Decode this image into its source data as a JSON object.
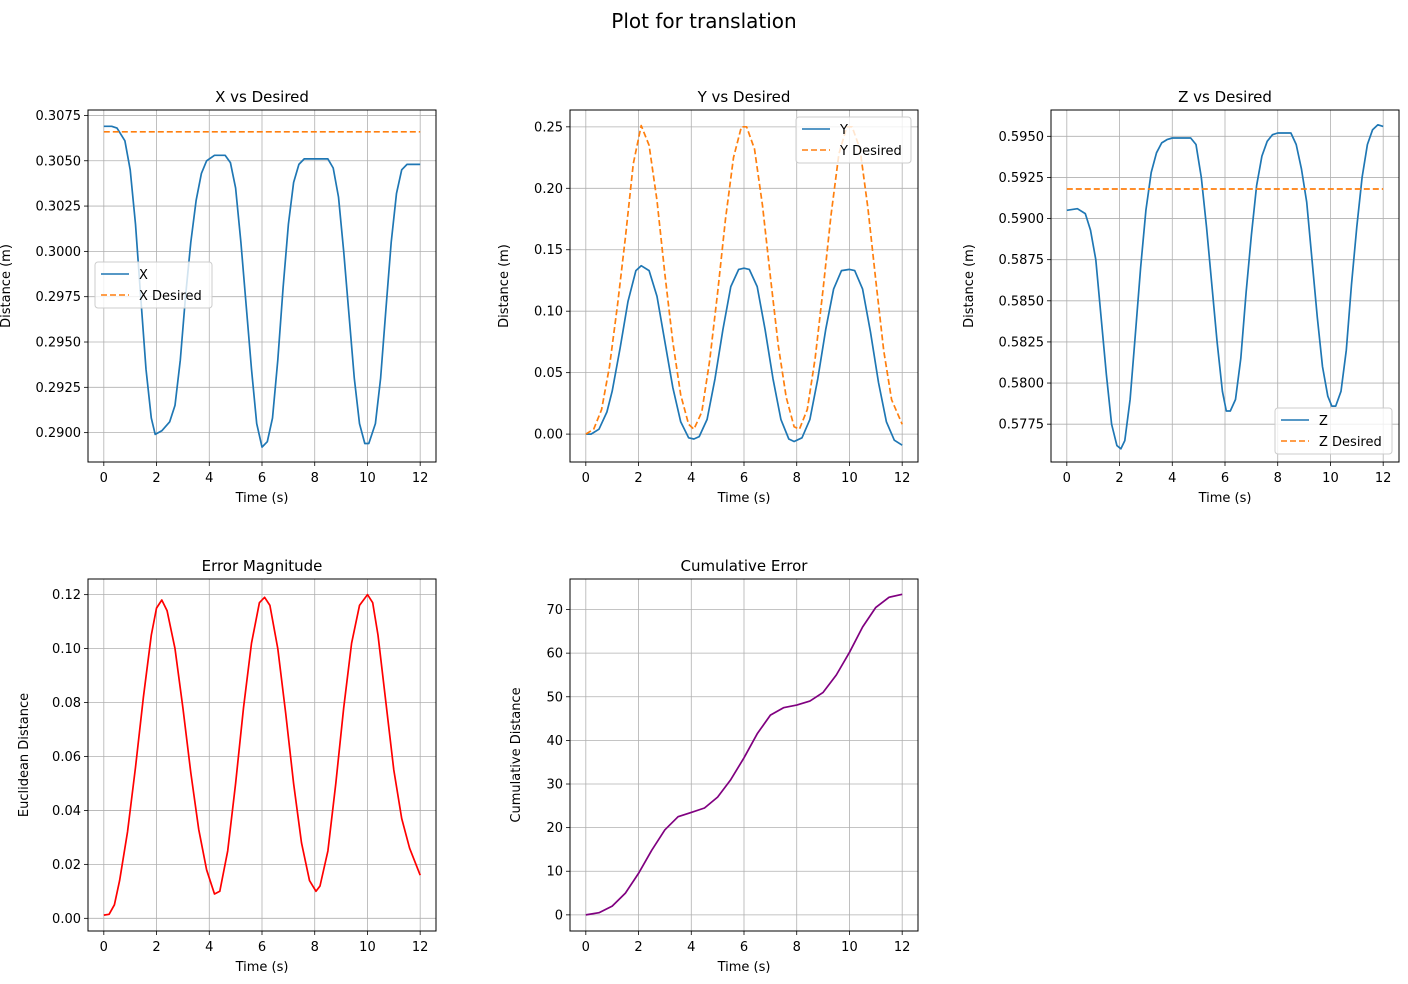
{
  "figure": {
    "title": "Plot for translation",
    "colors": {
      "measured": "#1f77b4",
      "desired": "#ff7f0e",
      "error": "#ff0000",
      "cumulative": "#800080"
    }
  },
  "chart_data": [
    {
      "type": "line",
      "title": "X vs Desired",
      "xlabel": "Time (s)",
      "ylabel": "Distance (m)",
      "xlim": [
        -0.6,
        12.6
      ],
      "ylim": [
        0.28838,
        0.3078
      ],
      "xticks": [
        0,
        2,
        4,
        6,
        8,
        10,
        12
      ],
      "yticks": [
        0.29,
        0.2925,
        0.295,
        0.2975,
        0.3,
        0.3025,
        0.305,
        0.3075
      ],
      "ytick_labels": [
        "0.2900",
        "0.2925",
        "0.2950",
        "0.2975",
        "0.3000",
        "0.3025",
        "0.3050",
        "0.3075"
      ],
      "grid": true,
      "legend": {
        "placement": "center-left"
      },
      "series": [
        {
          "name": "X",
          "style": "solid",
          "color": "#1f77b4",
          "x": [
            0,
            0.3,
            0.5,
            0.8,
            1.0,
            1.2,
            1.4,
            1.6,
            1.8,
            1.95,
            2.2,
            2.5,
            2.7,
            2.9,
            3.1,
            3.3,
            3.5,
            3.7,
            3.9,
            4.2,
            4.6,
            4.8,
            5.0,
            5.2,
            5.4,
            5.6,
            5.8,
            6.0,
            6.2,
            6.4,
            6.6,
            6.8,
            7.0,
            7.2,
            7.4,
            7.6,
            7.8,
            8.0,
            8.5,
            8.7,
            8.9,
            9.1,
            9.3,
            9.5,
            9.7,
            9.9,
            10.05,
            10.3,
            10.5,
            10.7,
            10.9,
            11.1,
            11.3,
            11.5,
            11.7,
            11.9,
            12.0
          ],
          "y": [
            0.3069,
            0.3069,
            0.3068,
            0.3061,
            0.3045,
            0.3015,
            0.2975,
            0.2935,
            0.2908,
            0.2899,
            0.2901,
            0.2906,
            0.2915,
            0.294,
            0.2975,
            0.3005,
            0.3028,
            0.3043,
            0.305,
            0.3053,
            0.3053,
            0.3049,
            0.3035,
            0.3005,
            0.297,
            0.2935,
            0.2905,
            0.2892,
            0.2895,
            0.2908,
            0.294,
            0.298,
            0.3015,
            0.3038,
            0.3048,
            0.3051,
            0.3051,
            0.3051,
            0.3051,
            0.3046,
            0.303,
            0.3,
            0.2965,
            0.293,
            0.2905,
            0.2894,
            0.2894,
            0.2905,
            0.293,
            0.2968,
            0.3005,
            0.3032,
            0.3045,
            0.3048,
            0.3048,
            0.3048,
            0.3048
          ]
        },
        {
          "name": "X Desired",
          "style": "dashed",
          "color": "#ff7f0e",
          "x": [
            0,
            12
          ],
          "y": [
            0.3066,
            0.3066
          ]
        }
      ]
    },
    {
      "type": "line",
      "title": "Y vs Desired",
      "xlabel": "Time (s)",
      "ylabel": "Distance (m)",
      "xlim": [
        -0.6,
        12.6
      ],
      "ylim": [
        -0.0227,
        0.2637
      ],
      "xticks": [
        0,
        2,
        4,
        6,
        8,
        10,
        12
      ],
      "yticks": [
        0,
        0.05,
        0.1,
        0.15,
        0.2,
        0.25
      ],
      "ytick_labels": [
        "0.00",
        "0.05",
        "0.10",
        "0.15",
        "0.20",
        "0.25"
      ],
      "grid": true,
      "legend": {
        "placement": "top-right"
      },
      "series": [
        {
          "name": "Y",
          "style": "solid",
          "color": "#1f77b4",
          "x": [
            0,
            0.2,
            0.5,
            0.8,
            1.0,
            1.3,
            1.6,
            1.9,
            2.1,
            2.4,
            2.7,
            3.0,
            3.3,
            3.6,
            3.9,
            4.1,
            4.3,
            4.6,
            4.9,
            5.2,
            5.5,
            5.8,
            6.0,
            6.2,
            6.5,
            6.8,
            7.1,
            7.4,
            7.7,
            7.9,
            8.2,
            8.5,
            8.8,
            9.1,
            9.4,
            9.7,
            10.0,
            10.2,
            10.5,
            10.8,
            11.1,
            11.4,
            11.7,
            12.0
          ],
          "y": [
            0.0,
            0.0,
            0.004,
            0.018,
            0.035,
            0.07,
            0.108,
            0.133,
            0.137,
            0.133,
            0.112,
            0.075,
            0.038,
            0.01,
            -0.003,
            -0.004,
            -0.002,
            0.012,
            0.045,
            0.085,
            0.12,
            0.134,
            0.135,
            0.134,
            0.12,
            0.085,
            0.045,
            0.012,
            -0.004,
            -0.006,
            -0.003,
            0.012,
            0.045,
            0.085,
            0.118,
            0.133,
            0.134,
            0.133,
            0.118,
            0.083,
            0.042,
            0.01,
            -0.005,
            -0.009
          ]
        },
        {
          "name": "Y Desired",
          "style": "dashed",
          "color": "#ff7f0e",
          "x": [
            0,
            0.3,
            0.6,
            0.9,
            1.2,
            1.5,
            1.8,
            2.1,
            2.4,
            2.7,
            3.0,
            3.3,
            3.6,
            3.9,
            4.1,
            4.4,
            4.7,
            5.0,
            5.3,
            5.6,
            5.9,
            6.1,
            6.4,
            6.7,
            7.0,
            7.3,
            7.6,
            7.9,
            8.1,
            8.4,
            8.7,
            9.0,
            9.3,
            9.6,
            9.9,
            10.1,
            10.4,
            10.7,
            11.0,
            11.3,
            11.6,
            12.0
          ],
          "y": [
            0.0,
            0.004,
            0.02,
            0.055,
            0.105,
            0.16,
            0.22,
            0.251,
            0.235,
            0.19,
            0.13,
            0.075,
            0.032,
            0.008,
            0.004,
            0.018,
            0.06,
            0.115,
            0.175,
            0.225,
            0.25,
            0.25,
            0.232,
            0.186,
            0.128,
            0.072,
            0.03,
            0.006,
            0.004,
            0.02,
            0.062,
            0.118,
            0.178,
            0.228,
            0.25,
            0.25,
            0.232,
            0.184,
            0.125,
            0.068,
            0.028,
            0.008
          ]
        }
      ]
    },
    {
      "type": "line",
      "title": "Z vs Desired",
      "xlabel": "Time (s)",
      "ylabel": "Distance (m)",
      "xlim": [
        -0.6,
        12.6
      ],
      "ylim": [
        0.5752,
        0.5966
      ],
      "xticks": [
        0,
        2,
        4,
        6,
        8,
        10,
        12
      ],
      "yticks": [
        0.5775,
        0.58,
        0.5825,
        0.585,
        0.5875,
        0.59,
        0.5925,
        0.595
      ],
      "ytick_labels": [
        "0.5775",
        "0.5800",
        "0.5825",
        "0.5850",
        "0.5875",
        "0.5900",
        "0.5925",
        "0.5950"
      ],
      "grid": true,
      "legend": {
        "placement": "bottom-right"
      },
      "series": [
        {
          "name": "Z",
          "style": "solid",
          "color": "#1f77b4",
          "x": [
            0,
            0.4,
            0.7,
            0.9,
            1.1,
            1.3,
            1.5,
            1.7,
            1.9,
            2.05,
            2.2,
            2.4,
            2.6,
            2.8,
            3.0,
            3.2,
            3.4,
            3.6,
            3.8,
            4.0,
            4.7,
            4.9,
            5.1,
            5.3,
            5.5,
            5.7,
            5.9,
            6.05,
            6.2,
            6.4,
            6.6,
            6.8,
            7.0,
            7.2,
            7.4,
            7.6,
            7.8,
            8.0,
            8.5,
            8.7,
            8.9,
            9.1,
            9.3,
            9.5,
            9.7,
            9.9,
            10.05,
            10.2,
            10.4,
            10.6,
            10.8,
            11.0,
            11.2,
            11.4,
            11.6,
            11.8,
            12.0
          ],
          "y": [
            0.5905,
            0.5906,
            0.5903,
            0.5893,
            0.5875,
            0.584,
            0.5805,
            0.5775,
            0.5762,
            0.576,
            0.5765,
            0.579,
            0.583,
            0.587,
            0.5905,
            0.5928,
            0.594,
            0.5946,
            0.5948,
            0.5949,
            0.5949,
            0.5945,
            0.5925,
            0.5895,
            0.586,
            0.5825,
            0.5795,
            0.5783,
            0.5783,
            0.579,
            0.5815,
            0.5855,
            0.589,
            0.592,
            0.5938,
            0.5947,
            0.5951,
            0.5952,
            0.5952,
            0.5945,
            0.593,
            0.591,
            0.5875,
            0.584,
            0.581,
            0.5792,
            0.5786,
            0.5786,
            0.5795,
            0.582,
            0.586,
            0.5895,
            0.5925,
            0.5945,
            0.5954,
            0.5957,
            0.5956
          ]
        },
        {
          "name": "Z Desired",
          "style": "dashed",
          "color": "#ff7f0e",
          "x": [
            0,
            12
          ],
          "y": [
            0.5918,
            0.5918
          ]
        }
      ]
    },
    {
      "type": "line",
      "title": "Error Magnitude",
      "xlabel": "Time (s)",
      "ylabel": "Euclidean Distance",
      "xlim": [
        -0.6,
        12.6
      ],
      "ylim": [
        -0.0047,
        0.1258
      ],
      "xticks": [
        0,
        2,
        4,
        6,
        8,
        10,
        12
      ],
      "yticks": [
        0,
        0.02,
        0.04,
        0.06,
        0.08,
        0.1,
        0.12
      ],
      "ytick_labels": [
        "0.00",
        "0.02",
        "0.04",
        "0.06",
        "0.08",
        "0.10",
        "0.12"
      ],
      "grid": true,
      "legend": {
        "placement": "none"
      },
      "series": [
        {
          "style": "solid",
          "color": "#ff0000",
          "x": [
            0,
            0.2,
            0.4,
            0.6,
            0.9,
            1.2,
            1.5,
            1.8,
            2.0,
            2.2,
            2.4,
            2.7,
            3.0,
            3.3,
            3.6,
            3.9,
            4.2,
            4.4,
            4.7,
            5.0,
            5.3,
            5.6,
            5.9,
            6.1,
            6.3,
            6.6,
            6.9,
            7.2,
            7.5,
            7.8,
            8.05,
            8.2,
            8.5,
            8.8,
            9.1,
            9.4,
            9.7,
            10.0,
            10.2,
            10.4,
            10.7,
            11.0,
            11.3,
            11.6,
            12.0
          ],
          "y": [
            0.0012,
            0.0015,
            0.005,
            0.014,
            0.032,
            0.056,
            0.082,
            0.105,
            0.115,
            0.118,
            0.114,
            0.1,
            0.078,
            0.054,
            0.033,
            0.018,
            0.009,
            0.01,
            0.025,
            0.05,
            0.078,
            0.102,
            0.117,
            0.119,
            0.116,
            0.1,
            0.076,
            0.05,
            0.028,
            0.014,
            0.01,
            0.012,
            0.025,
            0.05,
            0.078,
            0.102,
            0.116,
            0.12,
            0.117,
            0.105,
            0.08,
            0.055,
            0.037,
            0.026,
            0.016
          ]
        }
      ]
    },
    {
      "type": "line",
      "title": "Cumulative Error",
      "xlabel": "Time (s)",
      "ylabel": "Cumulative Distance",
      "xlim": [
        -0.6,
        12.6
      ],
      "ylim": [
        -3.7,
        77.0
      ],
      "xticks": [
        0,
        2,
        4,
        6,
        8,
        10,
        12
      ],
      "yticks": [
        0,
        10,
        20,
        30,
        40,
        50,
        60,
        70
      ],
      "ytick_labels": [
        "0",
        "10",
        "20",
        "30",
        "40",
        "50",
        "60",
        "70"
      ],
      "grid": true,
      "legend": {
        "placement": "none"
      },
      "series": [
        {
          "style": "solid",
          "color": "#800080",
          "x": [
            0,
            0.5,
            1.0,
            1.5,
            2.0,
            2.5,
            3.0,
            3.5,
            4.0,
            4.5,
            5.0,
            5.5,
            6.0,
            6.5,
            7.0,
            7.5,
            8.0,
            8.5,
            9.0,
            9.5,
            10.0,
            10.5,
            11.0,
            11.5,
            12.0
          ],
          "y": [
            0.0,
            0.5,
            2.0,
            5.0,
            9.5,
            14.8,
            19.5,
            22.5,
            23.5,
            24.5,
            27.0,
            31.0,
            36.0,
            41.5,
            45.8,
            47.5,
            48.1,
            49.0,
            51.0,
            55.0,
            60.2,
            66.0,
            70.5,
            72.8,
            73.5
          ]
        }
      ]
    }
  ]
}
